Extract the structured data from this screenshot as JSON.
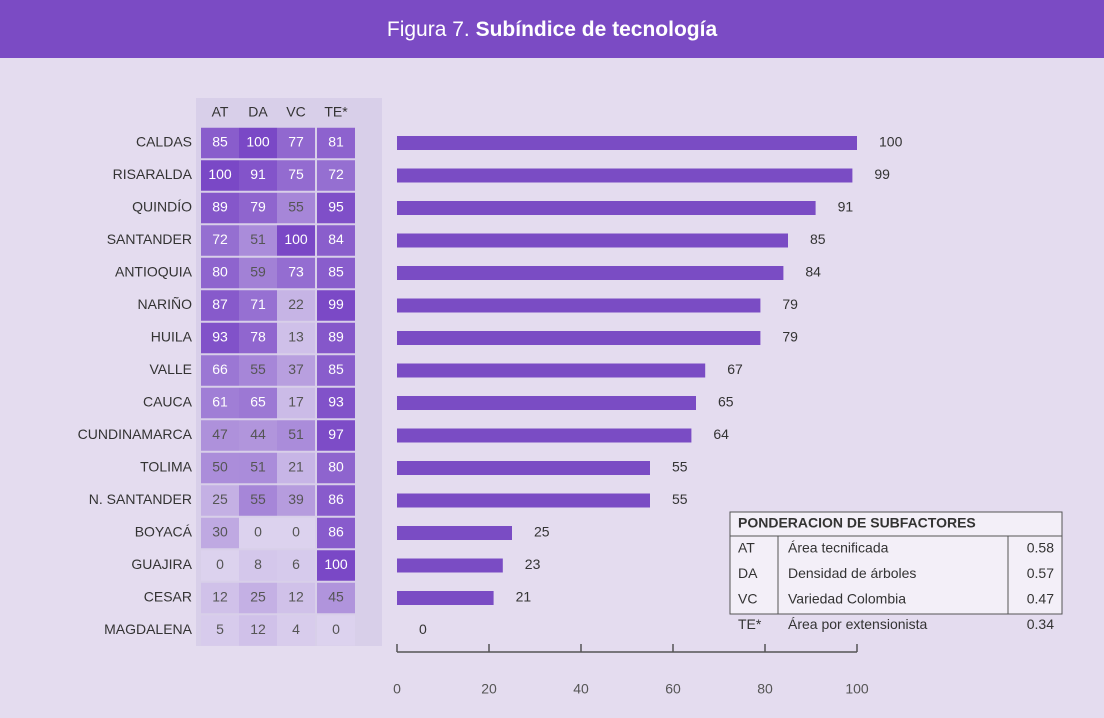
{
  "chart_data": {
    "type": "bar",
    "orientation": "horizontal",
    "figure_label": "Figura 7.",
    "title": "Subíndice de tecnología",
    "categories": [
      "CALDAS",
      "RISARALDA",
      "QUINDÍO",
      "SANTANDER",
      "ANTIOQUIA",
      "NARIÑO",
      "HUILA",
      "VALLE",
      "CAUCA",
      "CUNDINAMARCA",
      "TOLIMA",
      "N. SANTANDER",
      "BOYACÁ",
      "GUAJIRA",
      "CESAR",
      "MAGDALENA"
    ],
    "values": [
      100,
      99,
      91,
      85,
      84,
      79,
      79,
      67,
      65,
      64,
      55,
      55,
      25,
      23,
      21,
      0
    ],
    "color": "#7a4cc4",
    "xlim": [
      0,
      100
    ],
    "xticks": [
      0,
      20,
      40,
      60,
      80,
      100
    ],
    "table": {
      "columns": [
        "AT",
        "DA",
        "VC",
        "TE*"
      ],
      "rows": [
        [
          85,
          100,
          77,
          81
        ],
        [
          100,
          91,
          75,
          72
        ],
        [
          89,
          79,
          55,
          95
        ],
        [
          72,
          51,
          100,
          84
        ],
        [
          80,
          59,
          73,
          85
        ],
        [
          87,
          71,
          22,
          99
        ],
        [
          93,
          78,
          13,
          89
        ],
        [
          66,
          55,
          37,
          85
        ],
        [
          61,
          65,
          17,
          93
        ],
        [
          47,
          44,
          51,
          97
        ],
        [
          50,
          51,
          21,
          80
        ],
        [
          25,
          55,
          39,
          86
        ],
        [
          30,
          0,
          0,
          86
        ],
        [
          0,
          8,
          6,
          100
        ],
        [
          12,
          25,
          12,
          45
        ],
        [
          5,
          12,
          4,
          0
        ]
      ],
      "color_low": "#dcd2ee",
      "color_high": "#7a48c6"
    },
    "legend_box": {
      "title": "PONDERACION DE SUBFACTORES",
      "rows": [
        [
          "AT",
          "Área tecnificada",
          0.58
        ],
        [
          "DA",
          "Densidad de árboles",
          0.57
        ],
        [
          "VC",
          "Variedad Colombia",
          0.47
        ],
        [
          "TE*",
          "Área por extensionista",
          0.34
        ]
      ]
    }
  }
}
